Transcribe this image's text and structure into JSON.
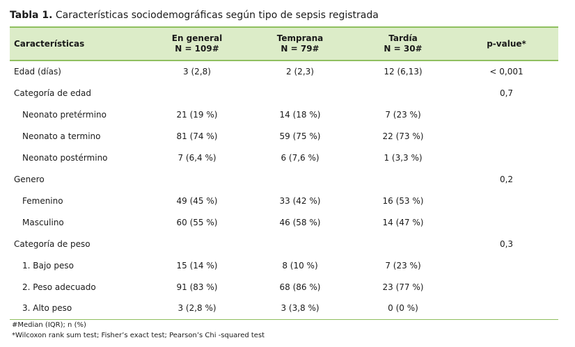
{
  "caption": {
    "prefix": "Tabla 1.",
    "text": "Características sociodemográficas según tipo de sepsis registrada"
  },
  "table": {
    "headers": [
      {
        "line1": "Características",
        "line2": ""
      },
      {
        "line1": "En general",
        "line2": "N = 109#"
      },
      {
        "line1": "Temprana",
        "line2": "N = 79#"
      },
      {
        "line1": "Tardía",
        "line2": "N = 30#"
      },
      {
        "line1": "p-value*",
        "line2": ""
      }
    ],
    "rows": [
      {
        "label": "Edad (días)",
        "indent": false,
        "general": "3 (2,8)",
        "temprana": "2 (2,3)",
        "tardia": "12 (6,13)",
        "p": "< 0,001"
      },
      {
        "label": "Categoría de edad",
        "indent": false,
        "general": "",
        "temprana": "",
        "tardia": "",
        "p": "0,7"
      },
      {
        "label": "Neonato pretérmino",
        "indent": true,
        "general": "21 (19 %)",
        "temprana": "14 (18 %)",
        "tardia": "7 (23 %)",
        "p": ""
      },
      {
        "label": "Neonato a termino",
        "indent": true,
        "general": "81 (74 %)",
        "temprana": "59 (75 %)",
        "tardia": "22 (73 %)",
        "p": ""
      },
      {
        "label": "Neonato postérmino",
        "indent": true,
        "general": "7 (6,4 %)",
        "temprana": "6 (7,6 %)",
        "tardia": "1 (3,3 %)",
        "p": ""
      },
      {
        "label": "Genero",
        "indent": false,
        "general": "",
        "temprana": "",
        "tardia": "",
        "p": "0,2"
      },
      {
        "label": "Femenino",
        "indent": true,
        "general": "49 (45 %)",
        "temprana": "33 (42 %)",
        "tardia": "16 (53 %)",
        "p": ""
      },
      {
        "label": "Masculino",
        "indent": true,
        "general": "60 (55 %)",
        "temprana": "46 (58 %)",
        "tardia": "14 (47 %)",
        "p": ""
      },
      {
        "label": "Categoría de peso",
        "indent": false,
        "general": "",
        "temprana": "",
        "tardia": "",
        "p": "0,3"
      },
      {
        "label": "1. Bajo peso",
        "indent": true,
        "general": "15 (14 %)",
        "temprana": "8 (10 %)",
        "tardia": "7 (23 %)",
        "p": ""
      },
      {
        "label": "2. Peso adecuado",
        "indent": true,
        "general": "91 (83 %)",
        "temprana": "68 (86 %)",
        "tardia": "23 (77 %)",
        "p": ""
      },
      {
        "label": "3. Alto peso",
        "indent": true,
        "general": "3 (2,8 %)",
        "temprana": "3 (3,8 %)",
        "tardia": "0 (0 %)",
        "p": ""
      }
    ]
  },
  "footnotes": [
    "#Median (IQR); n (%)",
    "*Wilcoxon rank sum test; Fisher’s exact test; Pearson’s Chi -squared test"
  ],
  "colors": {
    "header_bg": "#dcecc8",
    "rule": "#8fbf5f"
  }
}
